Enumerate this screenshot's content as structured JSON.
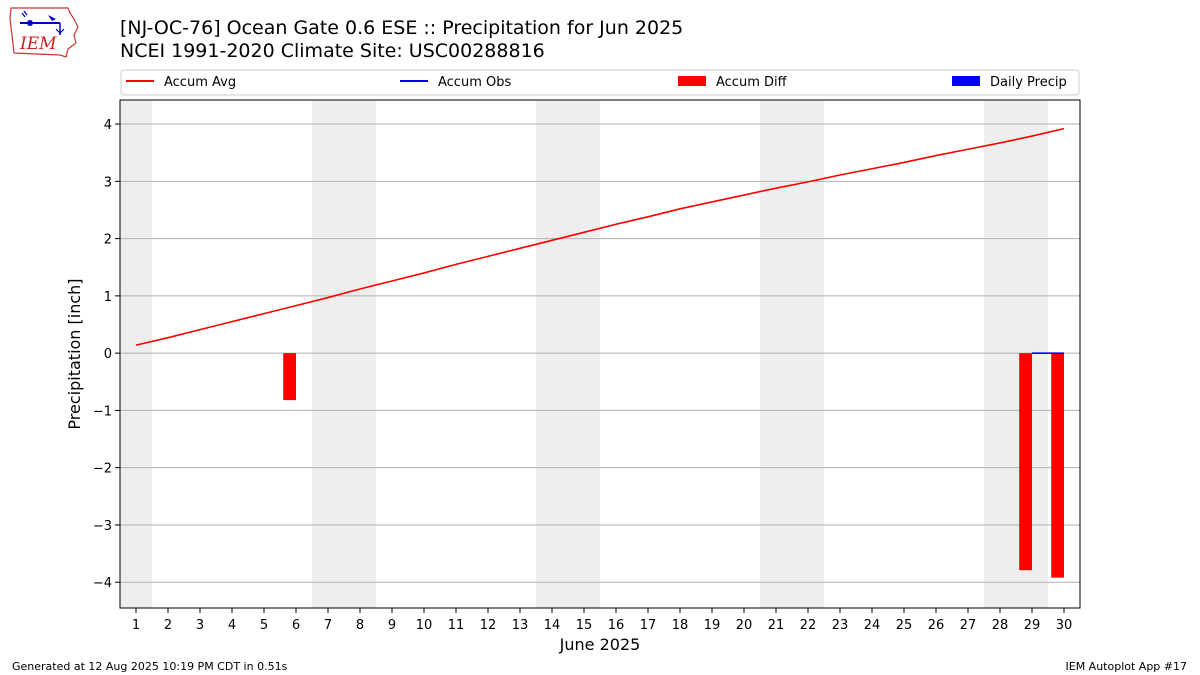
{
  "header": {
    "logo_text": "IEM",
    "title_line1": "[NJ-OC-76] Ocean Gate 0.6 ESE :: Precipitation for Jun 2025",
    "title_line2": "NCEI 1991-2020 Climate Site: USC00288816"
  },
  "footer": {
    "generated": "Generated at 12 Aug 2025 10:19 PM CDT in 0.51s",
    "app": "IEM Autoplot App #17"
  },
  "chart_data": {
    "type": "bar",
    "xlabel": "June 2025",
    "ylabel": "Precipitation [inch]",
    "xlim": [
      0.5,
      30.5
    ],
    "ylim": [
      -4.45,
      4.42
    ],
    "yticks": [
      4,
      3,
      2,
      1,
      0,
      -1,
      -2,
      -3,
      -4
    ],
    "ytick_labels": [
      "4",
      "3",
      "2",
      "1",
      "0",
      "−1",
      "−2",
      "−3",
      "−4"
    ],
    "xticks": [
      1,
      2,
      3,
      4,
      5,
      6,
      7,
      8,
      9,
      10,
      11,
      12,
      13,
      14,
      15,
      16,
      17,
      18,
      19,
      20,
      21,
      22,
      23,
      24,
      25,
      26,
      27,
      28,
      29,
      30
    ],
    "grid": "horizontal",
    "weekend_days": [
      1,
      7,
      8,
      14,
      15,
      21,
      22,
      28,
      29
    ],
    "legend": [
      {
        "label": "Accum Avg",
        "kind": "line",
        "color": "#ff0000"
      },
      {
        "label": "Accum Obs",
        "kind": "line",
        "color": "#0000ff"
      },
      {
        "label": "Accum Diff",
        "kind": "bar",
        "color": "#ff0000"
      },
      {
        "label": "Daily Precip",
        "kind": "bar",
        "color": "#0000ff"
      }
    ],
    "legend_placement": "above plot",
    "series": [
      {
        "name": "Accum Avg",
        "type": "line",
        "color": "#ff0000",
        "x": [
          1,
          2,
          3,
          4,
          5,
          6,
          7,
          8,
          9,
          10,
          11,
          12,
          13,
          14,
          15,
          16,
          17,
          18,
          19,
          20,
          21,
          22,
          23,
          24,
          25,
          26,
          27,
          28,
          29,
          30
        ],
        "values": [
          0.14,
          0.27,
          0.41,
          0.55,
          0.69,
          0.83,
          0.97,
          1.12,
          1.26,
          1.4,
          1.55,
          1.69,
          1.83,
          1.97,
          2.11,
          2.25,
          2.38,
          2.52,
          2.64,
          2.76,
          2.88,
          2.99,
          3.11,
          3.22,
          3.33,
          3.45,
          3.56,
          3.67,
          3.79,
          3.92
        ]
      },
      {
        "name": "Accum Obs",
        "type": "line",
        "color": "#0000ff",
        "x": [
          29,
          30
        ],
        "values": [
          0.0,
          0.0
        ]
      },
      {
        "name": "Accum Diff",
        "type": "bar",
        "color": "#ff0000",
        "x": [
          6,
          29,
          30
        ],
        "values": [
          -0.82,
          -3.79,
          -3.92
        ],
        "offset": -0.2,
        "width": 0.4
      },
      {
        "name": "Daily Precip",
        "type": "bar",
        "color": "#0000ff",
        "x": [],
        "values": []
      }
    ]
  }
}
